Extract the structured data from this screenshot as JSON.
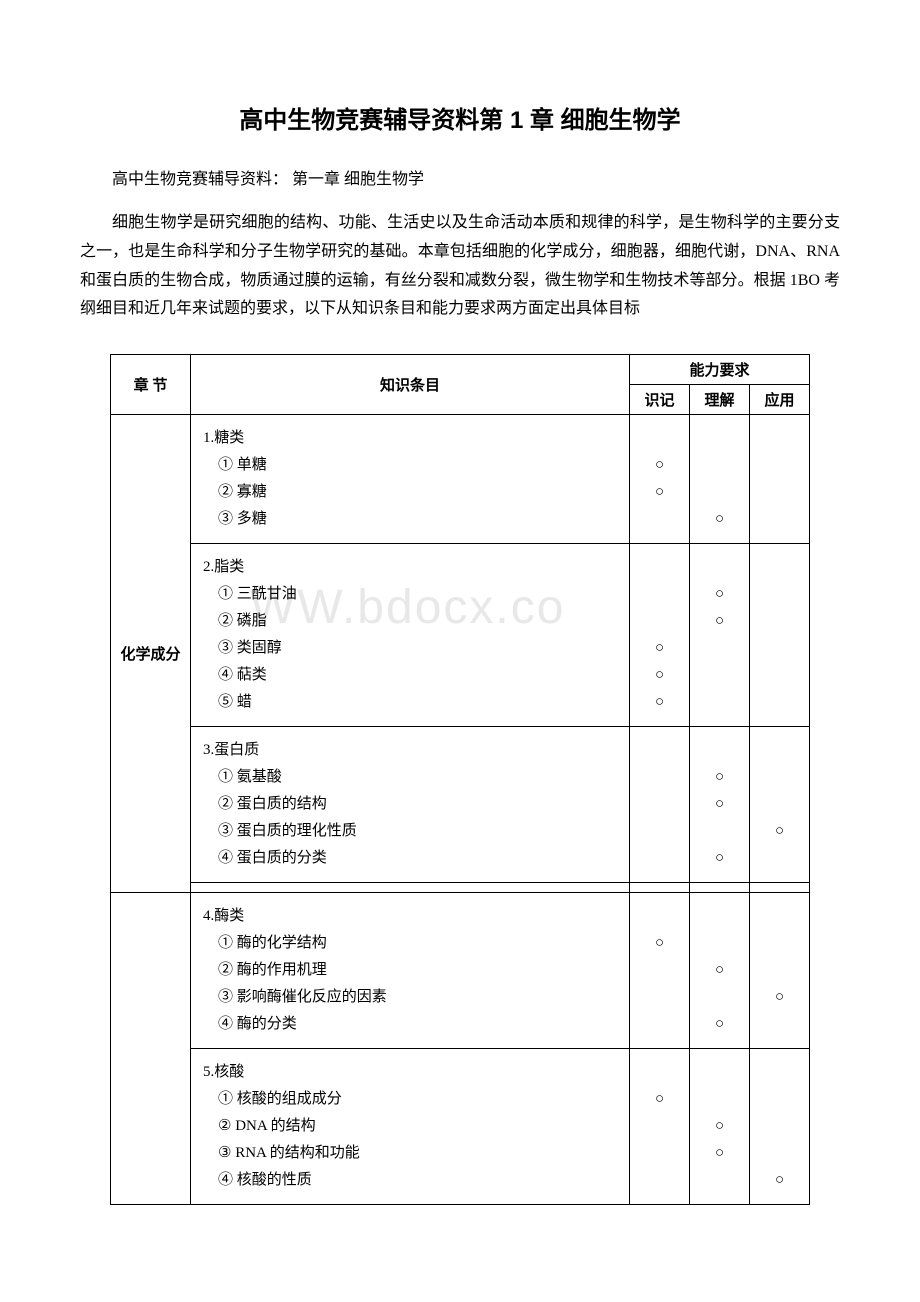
{
  "title": "高中生物竞赛辅导资料第 1 章 细胞生物学",
  "subtitle": "高中生物竞赛辅导资料：  第一章 细胞生物学",
  "intro": "细胞生物学是研究细胞的结构、功能、生活史以及生命活动本质和规律的科学，是生物科学的主要分支之一，也是生命科学和分子生物学研究的基础。本章包括细胞的化学成分，细胞器，细胞代谢，DNA、RNA 和蛋白质的生物合成，物质通过膜的运输，有丝分裂和减数分裂，微生物学和生物技术等部分。根据 1BO 考纲细目和近几年来试题的要求，以下从知识条目和能力要求两方面定出具体目标",
  "watermark": "WW.bdocx.co",
  "table": {
    "headers": {
      "chapter": "章    节",
      "topic": "知识条目",
      "ability": "能力要求",
      "col1": "识记",
      "col2": "理解",
      "col3": "应用"
    },
    "chapter_label": "化学成分",
    "mark": "○",
    "rows": [
      {
        "heading": "1.糖类",
        "items": [
          "① 单糖",
          "② 寡糖",
          "③ 多糖"
        ],
        "marks": {
          "col1": [
            "",
            "○",
            "○",
            ""
          ],
          "col2": [
            "",
            "",
            "",
            "○"
          ],
          "col3": [
            "",
            "",
            "",
            ""
          ]
        }
      },
      {
        "heading": "2.脂类",
        "items": [
          "① 三酰甘油",
          "② 磷脂",
          "③ 类固醇",
          "④ 萜类",
          "⑤ 蜡"
        ],
        "marks": {
          "col1": [
            "",
            "",
            "",
            "○",
            "○",
            "○"
          ],
          "col2": [
            "",
            "○",
            "○",
            "",
            "",
            ""
          ],
          "col3": [
            "",
            "",
            "",
            "",
            "",
            ""
          ]
        }
      },
      {
        "heading": "3.蛋白质",
        "items": [
          "① 氨基酸",
          "② 蛋白质的结构",
          "③ 蛋白质的理化性质",
          "④ 蛋白质的分类"
        ],
        "marks": {
          "col1": [
            "",
            "",
            "",
            "",
            ""
          ],
          "col2": [
            "",
            "○",
            "○",
            "",
            "○"
          ],
          "col3": [
            "",
            "",
            "",
            "○",
            ""
          ]
        }
      },
      {
        "heading": "4.酶类",
        "items": [
          "① 酶的化学结构",
          "② 酶的作用机理",
          "③ 影响酶催化反应的因素",
          "④ 酶的分类"
        ],
        "marks": {
          "col1": [
            "",
            "○",
            "",
            "",
            ""
          ],
          "col2": [
            "",
            "",
            "○",
            "",
            "○"
          ],
          "col3": [
            "",
            "",
            "",
            "○",
            ""
          ]
        }
      },
      {
        "heading": "5.核酸",
        "items": [
          "① 核酸的组成成分",
          "② DNA 的结构",
          "③ RNA 的结构和功能",
          "④ 核酸的性质"
        ],
        "marks": {
          "col1": [
            "",
            "○",
            "",
            "",
            ""
          ],
          "col2": [
            "",
            "",
            "○",
            "○",
            ""
          ],
          "col3": [
            "",
            "",
            "",
            "",
            "○"
          ]
        }
      }
    ]
  }
}
